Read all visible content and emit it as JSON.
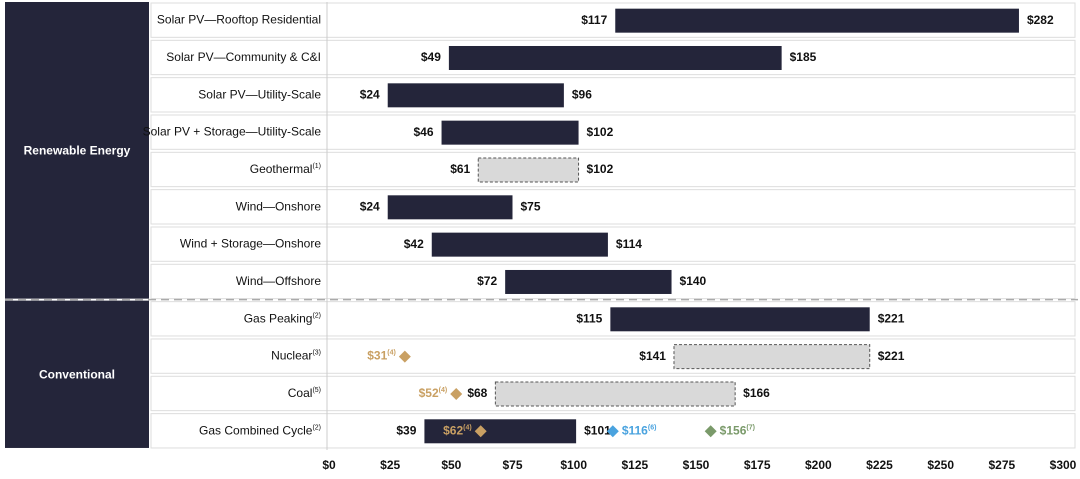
{
  "chart_data": {
    "type": "floating_bar",
    "xlim": [
      0,
      300
    ],
    "xticks": [
      {
        "value": 0,
        "label": "$0"
      },
      {
        "value": 25,
        "label": "$25"
      },
      {
        "value": 50,
        "label": "$50"
      },
      {
        "value": 75,
        "label": "$75"
      },
      {
        "value": 100,
        "label": "$100"
      },
      {
        "value": 125,
        "label": "$125"
      },
      {
        "value": 150,
        "label": "$150"
      },
      {
        "value": 175,
        "label": "$175"
      },
      {
        "value": 200,
        "label": "$200"
      },
      {
        "value": 225,
        "label": "$225"
      },
      {
        "value": 250,
        "label": "$250"
      },
      {
        "value": 275,
        "label": "$275"
      },
      {
        "value": 300,
        "label": "$300"
      }
    ],
    "bar_color": "#24253a",
    "dashed_color": "#d9d9d9",
    "groups": [
      {
        "label": "Renewable Energy",
        "rows": [
          {
            "name": "Solar PV—Rooftop Residential",
            "low": 117,
            "high": 282,
            "low_label": "$117",
            "high_label": "$282",
            "style": "solid"
          },
          {
            "name": "Solar PV—Community & C&I",
            "low": 49,
            "high": 185,
            "low_label": "$49",
            "high_label": "$185",
            "style": "solid"
          },
          {
            "name": "Solar PV—Utility-Scale",
            "low": 24,
            "high": 96,
            "low_label": "$24",
            "high_label": "$96",
            "style": "solid"
          },
          {
            "name": "Solar PV + Storage—Utility-Scale",
            "low": 46,
            "high": 102,
            "low_label": "$46",
            "high_label": "$102",
            "style": "solid"
          },
          {
            "name": "Geothermal",
            "note": "(1)",
            "low": 61,
            "high": 102,
            "low_label": "$61",
            "high_label": "$102",
            "style": "dashed"
          },
          {
            "name": "Wind—Onshore",
            "low": 24,
            "high": 75,
            "low_label": "$24",
            "high_label": "$75",
            "style": "solid"
          },
          {
            "name": "Wind + Storage—Onshore",
            "low": 42,
            "high": 114,
            "low_label": "$42",
            "high_label": "$114",
            "style": "solid"
          },
          {
            "name": "Wind—Offshore",
            "low": 72,
            "high": 140,
            "low_label": "$72",
            "high_label": "$140",
            "style": "solid"
          }
        ]
      },
      {
        "label": "Conventional",
        "rows": [
          {
            "name": "Gas Peaking",
            "note": "(2)",
            "low": 115,
            "high": 221,
            "low_label": "$115",
            "high_label": "$221",
            "style": "solid"
          },
          {
            "name": "Nuclear",
            "note": "(3)",
            "low": 141,
            "high": 221,
            "low_label": "$141",
            "high_label": "$221",
            "style": "dashed",
            "markers": [
              {
                "value": 31,
                "label": "$31",
                "note": "(4)",
                "color": "#c9a063"
              }
            ]
          },
          {
            "name": "Coal",
            "note": "(5)",
            "low": 68,
            "high": 166,
            "low_label": "$68",
            "high_label": "$166",
            "style": "dashed",
            "markers": [
              {
                "value": 52,
                "label": "$52",
                "note": "(4)",
                "color": "#c9a063"
              }
            ]
          },
          {
            "name": "Gas Combined Cycle",
            "note": "(2)",
            "low": 39,
            "high": 101,
            "low_label": "$39",
            "high_label": "$101",
            "style": "solid",
            "markers": [
              {
                "value": 62,
                "label": "$62",
                "note": "(4)",
                "color": "#c9a063"
              },
              {
                "value": 116,
                "label": "$116",
                "note": "(6)",
                "color": "#4aa3df"
              },
              {
                "value": 156,
                "label": "$156",
                "note": "(7)",
                "color": "#7a9a6a"
              }
            ]
          }
        ]
      }
    ]
  }
}
